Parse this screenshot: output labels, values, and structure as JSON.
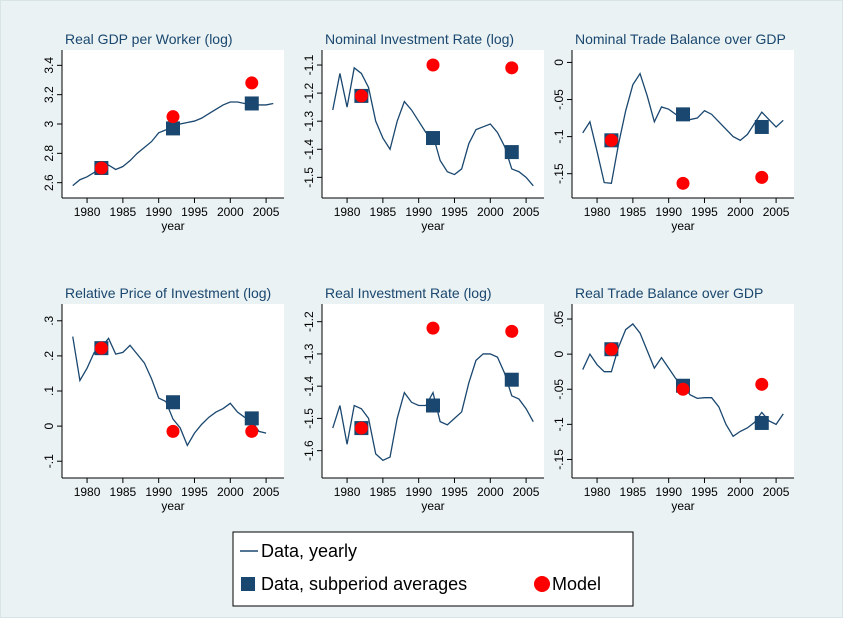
{
  "chart_data": [
    {
      "type": "line",
      "title": "Real GDP per Worker (log)",
      "xlabel": "year",
      "xlim": [
        1976.5,
        2007.5
      ],
      "xticks": [
        1980,
        1985,
        1990,
        1995,
        2000,
        2005
      ],
      "ylim": [
        2.55,
        3.45
      ],
      "yticks": [
        2.6,
        2.8,
        3,
        3.2,
        3.4
      ],
      "series": [
        {
          "name": "Data, yearly",
          "color": "#1a476f",
          "marker": "none",
          "x": [
            1978,
            1979,
            1980,
            1981,
            1982,
            1983,
            1984,
            1985,
            1986,
            1987,
            1988,
            1989,
            1990,
            1991,
            1992,
            1993,
            1994,
            1995,
            1996,
            1997,
            1998,
            1999,
            2000,
            2001,
            2002,
            2003,
            2004,
            2005,
            2006
          ],
          "values": [
            2.58,
            2.62,
            2.64,
            2.67,
            2.7,
            2.72,
            2.69,
            2.71,
            2.75,
            2.8,
            2.84,
            2.88,
            2.94,
            2.96,
            2.97,
            3.0,
            3.01,
            3.02,
            3.04,
            3.07,
            3.1,
            3.13,
            3.15,
            3.15,
            3.14,
            3.14,
            3.13,
            3.13,
            3.14
          ]
        },
        {
          "name": "Data, subperiod averages",
          "color": "#1a476f",
          "marker": "square",
          "x": [
            1982,
            1992,
            2003
          ],
          "values": [
            2.7,
            2.97,
            3.14
          ]
        },
        {
          "name": "Model",
          "color": "#ff0000",
          "marker": "circle",
          "x": [
            1982,
            1992,
            2003
          ],
          "values": [
            2.7,
            3.05,
            3.28
          ]
        }
      ]
    },
    {
      "type": "line",
      "title": "Nominal Investment Rate (log)",
      "xlabel": "year",
      "xlim": [
        1976.5,
        2007.5
      ],
      "xticks": [
        1980,
        1985,
        1990,
        1995,
        2000,
        2005
      ],
      "ylim": [
        -1.545,
        -1.075
      ],
      "yticks": [
        -1.5,
        -1.4,
        -1.3,
        -1.2,
        -1.1
      ],
      "series": [
        {
          "color": "#1a476f",
          "marker": "none",
          "x": [
            1978,
            1979,
            1980,
            1981,
            1982,
            1983,
            1984,
            1985,
            1986,
            1987,
            1988,
            1989,
            1990,
            1991,
            1992,
            1993,
            1994,
            1995,
            1996,
            1997,
            1998,
            1999,
            2000,
            2001,
            2002,
            2003,
            2004,
            2005,
            2006
          ],
          "values": [
            -1.26,
            -1.13,
            -1.25,
            -1.11,
            -1.13,
            -1.18,
            -1.3,
            -1.36,
            -1.4,
            -1.3,
            -1.23,
            -1.26,
            -1.3,
            -1.34,
            -1.35,
            -1.44,
            -1.48,
            -1.49,
            -1.47,
            -1.38,
            -1.33,
            -1.32,
            -1.31,
            -1.34,
            -1.39,
            -1.47,
            -1.48,
            -1.5,
            -1.53
          ]
        },
        {
          "color": "#1a476f",
          "marker": "square",
          "x": [
            1982,
            1992,
            2003
          ],
          "values": [
            -1.21,
            -1.36,
            -1.41
          ]
        },
        {
          "color": "#ff0000",
          "marker": "circle",
          "x": [
            1982,
            1992,
            2003
          ],
          "values": [
            -1.21,
            -1.1,
            -1.11
          ]
        }
      ]
    },
    {
      "type": "line",
      "title": "Nominal Trade Balance over GDP",
      "xlabel": "year",
      "xlim": [
        1976.5,
        2007.5
      ],
      "xticks": [
        1980,
        1985,
        1990,
        1995,
        2000,
        2005
      ],
      "ylim": [
        -0.172,
        0.006
      ],
      "yticks": [
        0,
        {
          "value": -0.05,
          "label": "-.05"
        },
        {
          "value": -0.1,
          "label": "-.1"
        },
        {
          "value": -0.15,
          "label": "-.15"
        }
      ],
      "series": [
        {
          "color": "#1a476f",
          "marker": "none",
          "x": [
            1978,
            1979,
            1980,
            1981,
            1982,
            1983,
            1984,
            1985,
            1986,
            1987,
            1988,
            1989,
            1990,
            1991,
            1992,
            1993,
            1994,
            1995,
            1996,
            1997,
            1998,
            1999,
            2000,
            2001,
            2002,
            2003,
            2004,
            2005,
            2006
          ],
          "values": [
            -0.095,
            -0.08,
            -0.12,
            -0.162,
            -0.163,
            -0.11,
            -0.065,
            -0.03,
            -0.015,
            -0.045,
            -0.08,
            -0.06,
            -0.063,
            -0.07,
            -0.073,
            -0.077,
            -0.075,
            -0.065,
            -0.07,
            -0.08,
            -0.09,
            -0.1,
            -0.105,
            -0.097,
            -0.082,
            -0.067,
            -0.077,
            -0.087,
            -0.078
          ]
        },
        {
          "color": "#1a476f",
          "marker": "square",
          "x": [
            1982,
            1992,
            2003
          ],
          "values": [
            -0.105,
            -0.07,
            -0.087
          ]
        },
        {
          "color": "#ff0000",
          "marker": "circle",
          "x": [
            1982,
            1992,
            2003
          ],
          "values": [
            -0.105,
            -0.163,
            -0.155
          ]
        }
      ]
    },
    {
      "type": "line",
      "title": "Relative Price of Investment (log)",
      "xlabel": "year",
      "xlim": [
        1976.5,
        2007.5
      ],
      "xticks": [
        1980,
        1985,
        1990,
        1995,
        2000,
        2005
      ],
      "ylim": [
        -0.125,
        0.325
      ],
      "yticks": [
        {
          "value": 0.3,
          "label": ".3"
        },
        {
          "value": 0.2,
          "label": ".2"
        },
        {
          "value": 0.1,
          "label": ".1"
        },
        0,
        {
          "value": -0.1,
          "label": "-.1"
        }
      ],
      "series": [
        {
          "color": "#1a476f",
          "marker": "none",
          "x": [
            1978,
            1979,
            1980,
            1981,
            1982,
            1983,
            1984,
            1985,
            1986,
            1987,
            1988,
            1989,
            1990,
            1991,
            1992,
            1993,
            1994,
            1995,
            1996,
            1997,
            1998,
            1999,
            2000,
            2001,
            2002,
            2003,
            2004,
            2005
          ],
          "values": [
            0.255,
            0.13,
            0.165,
            0.21,
            0.225,
            0.25,
            0.205,
            0.21,
            0.23,
            0.205,
            0.18,
            0.135,
            0.08,
            0.07,
            0.02,
            -0.005,
            -0.055,
            -0.02,
            0.005,
            0.025,
            0.04,
            0.05,
            0.065,
            0.04,
            0.025,
            0.015,
            -0.015,
            -0.02
          ]
        },
        {
          "color": "#1a476f",
          "marker": "square",
          "x": [
            1982,
            1992,
            2003
          ],
          "values": [
            0.222,
            0.068,
            0.022
          ]
        },
        {
          "color": "#ff0000",
          "marker": "circle",
          "x": [
            1982,
            1992,
            2003
          ],
          "values": [
            0.222,
            -0.015,
            -0.015
          ]
        }
      ]
    },
    {
      "type": "line",
      "title": "Real Investment Rate (log)",
      "xlabel": "year",
      "xlim": [
        1976.5,
        2007.5
      ],
      "xticks": [
        1980,
        1985,
        1990,
        1995,
        2000,
        2005
      ],
      "ylim": [
        -1.66,
        -1.17
      ],
      "yticks": [
        -1.6,
        -1.5,
        -1.4,
        -1.3,
        -1.2
      ],
      "series": [
        {
          "color": "#1a476f",
          "marker": "none",
          "x": [
            1978,
            1979,
            1980,
            1981,
            1982,
            1983,
            1984,
            1985,
            1986,
            1987,
            1988,
            1989,
            1990,
            1991,
            1992,
            1993,
            1994,
            1995,
            1996,
            1997,
            1998,
            1999,
            2000,
            2001,
            2002,
            2003,
            2004,
            2005,
            2006
          ],
          "values": [
            -1.53,
            -1.46,
            -1.58,
            -1.46,
            -1.47,
            -1.5,
            -1.61,
            -1.63,
            -1.62,
            -1.5,
            -1.42,
            -1.45,
            -1.46,
            -1.46,
            -1.42,
            -1.51,
            -1.52,
            -1.5,
            -1.48,
            -1.39,
            -1.32,
            -1.3,
            -1.3,
            -1.31,
            -1.36,
            -1.43,
            -1.44,
            -1.47,
            -1.51
          ]
        },
        {
          "color": "#1a476f",
          "marker": "square",
          "x": [
            1982,
            1992,
            2003
          ],
          "values": [
            -1.53,
            -1.46,
            -1.38
          ]
        },
        {
          "color": "#ff0000",
          "marker": "circle",
          "x": [
            1982,
            1992,
            2003
          ],
          "values": [
            -1.53,
            -1.22,
            -1.23
          ]
        }
      ]
    },
    {
      "type": "line",
      "title": "Real Trade Balance over GDP",
      "xlabel": "year",
      "xlim": [
        1976.5,
        2007.5
      ],
      "xticks": [
        1980,
        1985,
        1990,
        1995,
        2000,
        2005
      ],
      "ylim": [
        -0.165,
        0.06
      ],
      "yticks": [
        {
          "value": 0.05,
          "label": ".05"
        },
        0,
        {
          "value": -0.05,
          "label": "-.05"
        },
        {
          "value": -0.1,
          "label": "-.1"
        },
        {
          "value": -0.15,
          "label": "-.15"
        }
      ],
      "series": [
        {
          "color": "#1a476f",
          "marker": "none",
          "x": [
            1978,
            1979,
            1980,
            1981,
            1982,
            1983,
            1984,
            1985,
            1986,
            1987,
            1988,
            1989,
            1990,
            1991,
            1992,
            1993,
            1994,
            1995,
            1996,
            1997,
            1998,
            1999,
            2000,
            2001,
            2002,
            2003,
            2004,
            2005,
            2006
          ],
          "values": [
            -0.022,
            0.0,
            -0.015,
            -0.025,
            -0.025,
            0.01,
            0.035,
            0.043,
            0.03,
            0.005,
            -0.02,
            -0.005,
            -0.02,
            -0.035,
            -0.045,
            -0.058,
            -0.063,
            -0.062,
            -0.062,
            -0.075,
            -0.1,
            -0.117,
            -0.11,
            -0.105,
            -0.097,
            -0.083,
            -0.095,
            -0.1,
            -0.085
          ]
        },
        {
          "color": "#1a476f",
          "marker": "square",
          "x": [
            1982,
            1992,
            2003
          ],
          "values": [
            0.007,
            -0.045,
            -0.098
          ]
        },
        {
          "color": "#ff0000",
          "marker": "circle",
          "x": [
            1982,
            1992,
            2003
          ],
          "values": [
            0.007,
            -0.05,
            -0.043
          ]
        }
      ]
    }
  ]
}
